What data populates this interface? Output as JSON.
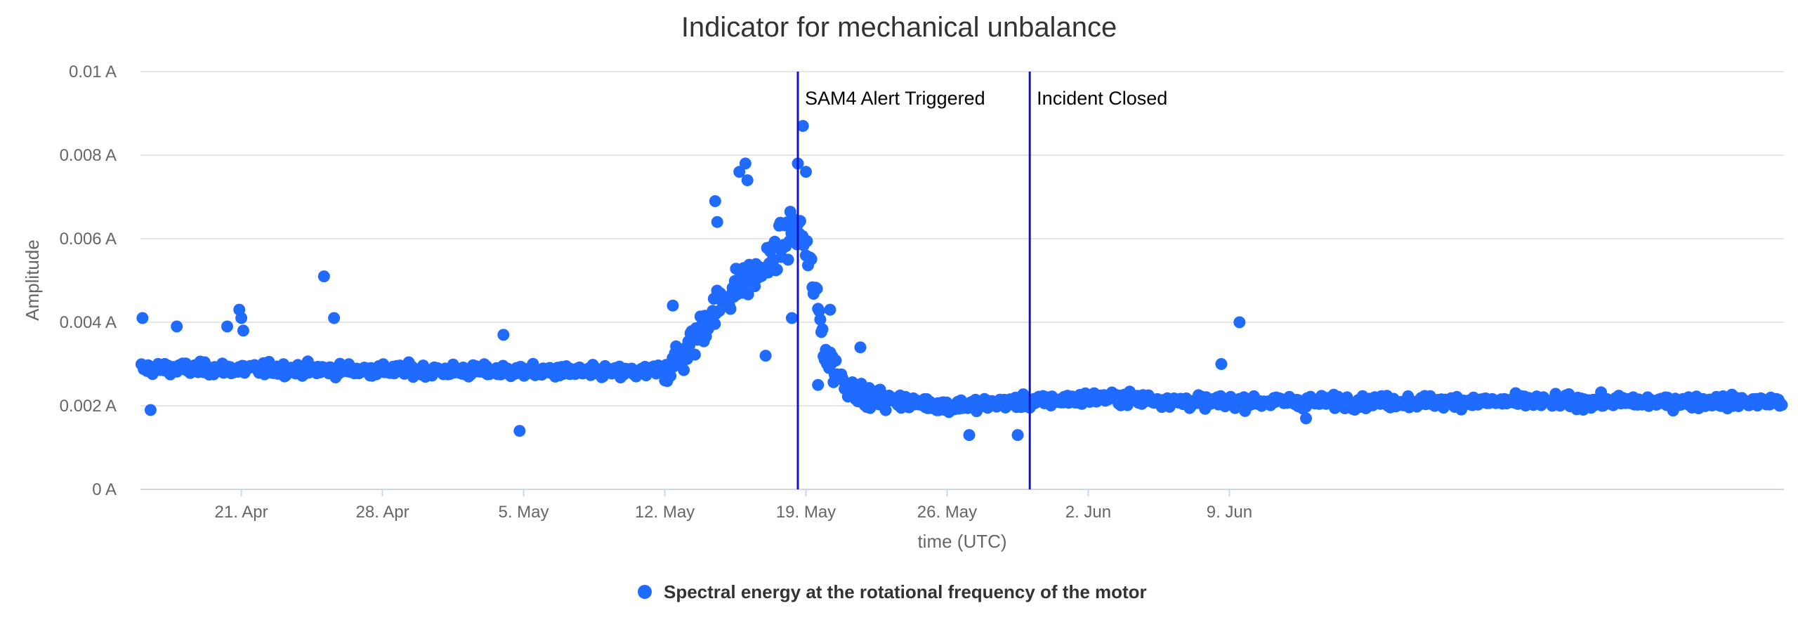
{
  "chart_data": {
    "type": "scatter",
    "title": "Indicator for mechanical unbalance",
    "xlabel": "time (UTC)",
    "ylabel": "Amplitude",
    "ylim": [
      0,
      0.01
    ],
    "yticks": [
      {
        "value": 0,
        "label": "0 A"
      },
      {
        "value": 0.002,
        "label": "0.002 A"
      },
      {
        "value": 0.004,
        "label": "0.004 A"
      },
      {
        "value": 0.006,
        "label": "0.006 A"
      },
      {
        "value": 0.008,
        "label": "0.008 A"
      },
      {
        "value": 0.01,
        "label": "0.01 A"
      }
    ],
    "xlim_days": [
      0,
      81.5
    ],
    "x_start_date": "16. Apr",
    "xticks": [
      {
        "day": 5,
        "label": "21. Apr"
      },
      {
        "day": 12,
        "label": "28. Apr"
      },
      {
        "day": 19,
        "label": "5. May"
      },
      {
        "day": 26,
        "label": "12. May"
      },
      {
        "day": 33,
        "label": "19. May"
      },
      {
        "day": 40,
        "label": "26. May"
      },
      {
        "day": 47,
        "label": "2. Jun"
      },
      {
        "day": 54,
        "label": "9. Jun"
      }
    ],
    "annotations": [
      {
        "day": 32.6,
        "label": "SAM4 Alert Triggered"
      },
      {
        "day": 44.1,
        "label": "Incident Closed"
      }
    ],
    "legend_position": "bottom-center",
    "series": [
      {
        "name": "Spectral energy at the rotational frequency of the motor",
        "color": "#1f6bff",
        "x_unit": "days since 16. Apr",
        "y_unit": "A",
        "profile_days": [
          0,
          25,
          26,
          27,
          28,
          29,
          30,
          31,
          32,
          32.5,
          33,
          33.5,
          34,
          35,
          36,
          38,
          40,
          44,
          48,
          52,
          56,
          81.5
        ],
        "profile_values": [
          0.0029,
          0.0028,
          0.0029,
          0.0033,
          0.004,
          0.0046,
          0.005,
          0.0053,
          0.006,
          0.0063,
          0.0058,
          0.0046,
          0.0032,
          0.0025,
          0.0022,
          0.0021,
          0.002,
          0.0021,
          0.0022,
          0.0021,
          0.0021,
          0.0021
        ],
        "outliers": [
          {
            "x": 0.1,
            "y": 0.0041
          },
          {
            "x": 0.5,
            "y": 0.0019
          },
          {
            "x": 1.8,
            "y": 0.0039
          },
          {
            "x": 4.3,
            "y": 0.0039
          },
          {
            "x": 4.9,
            "y": 0.0043
          },
          {
            "x": 5.0,
            "y": 0.0041
          },
          {
            "x": 5.1,
            "y": 0.0038
          },
          {
            "x": 9.1,
            "y": 0.0051
          },
          {
            "x": 9.6,
            "y": 0.0041
          },
          {
            "x": 18.0,
            "y": 0.0037
          },
          {
            "x": 18.8,
            "y": 0.0014
          },
          {
            "x": 26.4,
            "y": 0.0044
          },
          {
            "x": 28.5,
            "y": 0.0069
          },
          {
            "x": 28.6,
            "y": 0.0064
          },
          {
            "x": 29.7,
            "y": 0.0076
          },
          {
            "x": 30.0,
            "y": 0.0078
          },
          {
            "x": 30.1,
            "y": 0.0074
          },
          {
            "x": 31.0,
            "y": 0.0032
          },
          {
            "x": 32.3,
            "y": 0.0041
          },
          {
            "x": 32.6,
            "y": 0.0078
          },
          {
            "x": 32.85,
            "y": 0.0087
          },
          {
            "x": 33.0,
            "y": 0.0076
          },
          {
            "x": 33.6,
            "y": 0.0025
          },
          {
            "x": 34.2,
            "y": 0.0043
          },
          {
            "x": 35.7,
            "y": 0.0034
          },
          {
            "x": 41.1,
            "y": 0.0013
          },
          {
            "x": 43.5,
            "y": 0.0013
          },
          {
            "x": 53.6,
            "y": 0.003
          },
          {
            "x": 54.5,
            "y": 0.004
          },
          {
            "x": 57.8,
            "y": 0.0017
          }
        ]
      }
    ]
  }
}
